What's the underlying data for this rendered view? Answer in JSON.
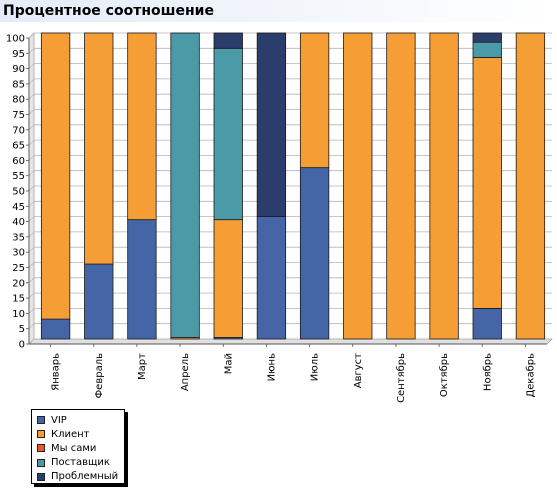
{
  "title": "Процентное соотношение",
  "colors": {
    "vip": "#4566a6",
    "client": "#f59e35",
    "self": "#e8562a",
    "supplier": "#4b9aa8",
    "problem": "#2b3d6b"
  },
  "legend": [
    {
      "label": "VIP",
      "color": "#4566a6"
    },
    {
      "label": "Клиент",
      "color": "#f59e35"
    },
    {
      "label": "Мы сами",
      "color": "#e8562a"
    },
    {
      "label": "Поставщик",
      "color": "#4b9aa8"
    },
    {
      "label": "Проблемный",
      "color": "#2b3d6b"
    }
  ],
  "chart_data": {
    "type": "bar",
    "stacked": true,
    "title": "Процентное соотношение",
    "categories": [
      "Январь",
      "Февраль",
      "Март",
      "Апрель",
      "Май",
      "Июнь",
      "Июль",
      "Август",
      "Сентябрь",
      "Октябрь",
      "Ноябрь",
      "Декабрь"
    ],
    "ylim": [
      0,
      100
    ],
    "yticks": [
      0,
      5,
      10,
      15,
      20,
      25,
      30,
      35,
      40,
      45,
      50,
      55,
      60,
      65,
      70,
      75,
      80,
      85,
      90,
      95,
      100
    ],
    "grid": true,
    "legend_position": "bottom-left",
    "series": [
      {
        "name": "VIP",
        "color": "#4566a6",
        "values": [
          6.5,
          24.5,
          39,
          0,
          0.5,
          40,
          56,
          0,
          0,
          0,
          10,
          0
        ]
      },
      {
        "name": "Клиент",
        "color": "#f59e35",
        "values": [
          93.5,
          75.5,
          61,
          0.5,
          38.5,
          0,
          44,
          100,
          100,
          100,
          82,
          100
        ]
      },
      {
        "name": "Мы сами",
        "color": "#e8562a",
        "values": [
          0,
          0,
          0,
          0,
          0,
          0,
          0,
          0,
          0,
          0,
          0,
          0
        ]
      },
      {
        "name": "Поставщик",
        "color": "#4b9aa8",
        "values": [
          0,
          0,
          0,
          99.5,
          56,
          0,
          0,
          0,
          0,
          0,
          5,
          0
        ]
      },
      {
        "name": "Проблемный",
        "color": "#2b3d6b",
        "values": [
          0,
          0,
          0,
          0,
          5,
          60,
          0,
          0,
          0,
          0,
          3,
          0
        ]
      }
    ]
  }
}
